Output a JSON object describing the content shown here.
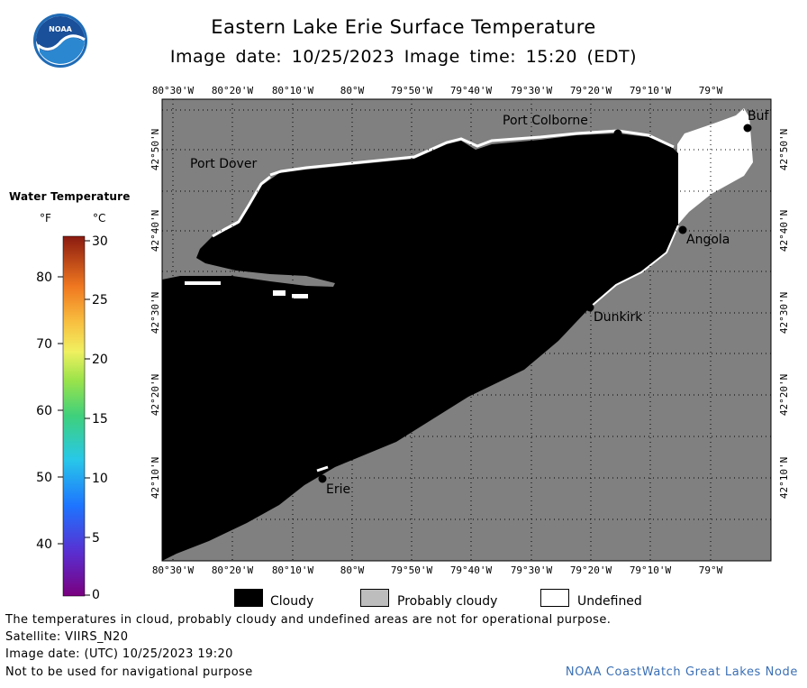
{
  "header": {
    "title": "Eastern Lake Erie Surface Temperature",
    "subtitle": "Image date: 10/25/2023    Image time: 15:20 (EDT)",
    "logo_text": "NOAA"
  },
  "map": {
    "top_lon_labels": [
      "80°30'W",
      "80°20'W",
      "80°10'W",
      "80°W",
      "79°50'W",
      "79°40'W",
      "79°30'W",
      "79°20'W",
      "79°10'W",
      "79°W"
    ],
    "bottom_lon_labels": [
      "80°30'W",
      "80°20'W",
      "80°10'W",
      "80°W",
      "79°50'W",
      "79°40'W",
      "79°30'W",
      "79°20'W",
      "79°10'W",
      "79°W"
    ],
    "lat_labels": [
      "42°50'N",
      "42°40'N",
      "42°30'N",
      "42°20'N",
      "42°10'N"
    ],
    "cities": [
      {
        "name": "Port Colborne"
      },
      {
        "name": "Buf"
      },
      {
        "name": "Port Dover"
      },
      {
        "name": "Angola"
      },
      {
        "name": "Dunkirk"
      },
      {
        "name": "Erie"
      }
    ],
    "colors": {
      "land": "#808080",
      "cloudy": "#000000",
      "undefined": "#ffffff",
      "grid": "#000000"
    }
  },
  "legend": {
    "title": "Water Temperature",
    "unit_f": "°F",
    "unit_c": "°C",
    "f_ticks": [
      "80",
      "70",
      "60",
      "50",
      "40"
    ],
    "c_ticks": [
      "30",
      "25",
      "20",
      "15",
      "10",
      "5",
      "0"
    ]
  },
  "key": {
    "cloudy": "Cloudy",
    "probably_cloudy": "Probably cloudy",
    "undefined": "Undefined"
  },
  "notes": {
    "disclaimer": "The temperatures in cloud, probably cloudy and undefined areas are not for operational purpose.",
    "satellite": "Satellite: VIIRS_N20",
    "utc_date": "Image date: (UTC) 10/25/2023  19:20",
    "navigation": "Not to be used for navigational purpose",
    "credit": "NOAA CoastWatch Great Lakes Node"
  }
}
